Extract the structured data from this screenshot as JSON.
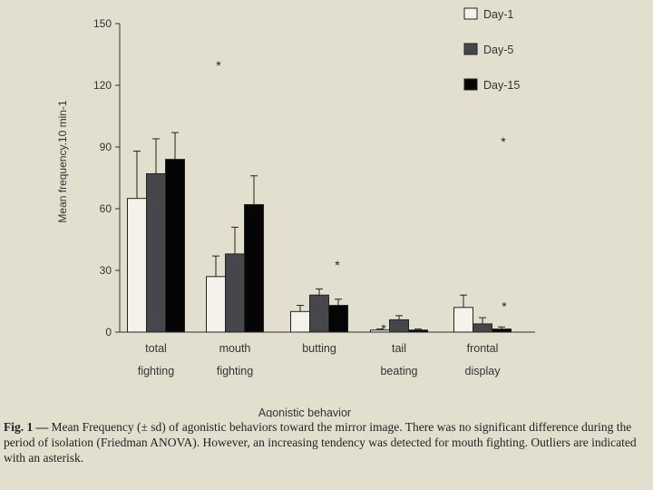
{
  "chart_data": {
    "type": "bar",
    "title": "",
    "xlabel": "Agonistic behavior",
    "ylabel": "Mean frequency.10 min-1",
    "ylim": [
      0,
      150
    ],
    "yticks": [
      "0",
      "30",
      "60",
      "90",
      "120",
      "150"
    ],
    "grid": false,
    "legend_position": "top-right",
    "categories": [
      [
        "total",
        "fighting"
      ],
      [
        "mouth",
        "fighting"
      ],
      [
        "butting",
        ""
      ],
      [
        "tail",
        "beating"
      ],
      [
        "frontal",
        "display"
      ]
    ],
    "series": [
      {
        "name": "Day-1",
        "color": "#f4f2ea",
        "values": [
          65,
          27,
          10,
          1,
          12
        ],
        "errors": [
          23,
          10,
          3,
          0.5,
          6
        ]
      },
      {
        "name": "Day-5",
        "color": "#45474a",
        "values": [
          77,
          38,
          18,
          6,
          4
        ],
        "errors": [
          17,
          13,
          3,
          2,
          3
        ]
      },
      {
        "name": "Day-15",
        "color": "#050505",
        "values": [
          84,
          62,
          13,
          1,
          1.5
        ],
        "errors": [
          13,
          14,
          3,
          0.5,
          1
        ]
      }
    ],
    "annotations": [
      {
        "text": "*",
        "category": 1,
        "value": 131
      },
      {
        "text": "*",
        "category": 2,
        "value": 34
      },
      {
        "text": "*",
        "category": 3,
        "value": 3
      },
      {
        "text": "*",
        "category": 4,
        "value": 94
      },
      {
        "text": "*",
        "category": 4,
        "value": 14
      }
    ]
  },
  "caption": {
    "label": "Fig. 1 — ",
    "text": "Mean Frequency (± sd) of agonistic behaviors toward the mirror image. There was no significant difference during the period of isolation (Friedman ANOVA). However, an increasing tendency was detected for mouth fighting. Outliers are indicated with an asterisk."
  }
}
